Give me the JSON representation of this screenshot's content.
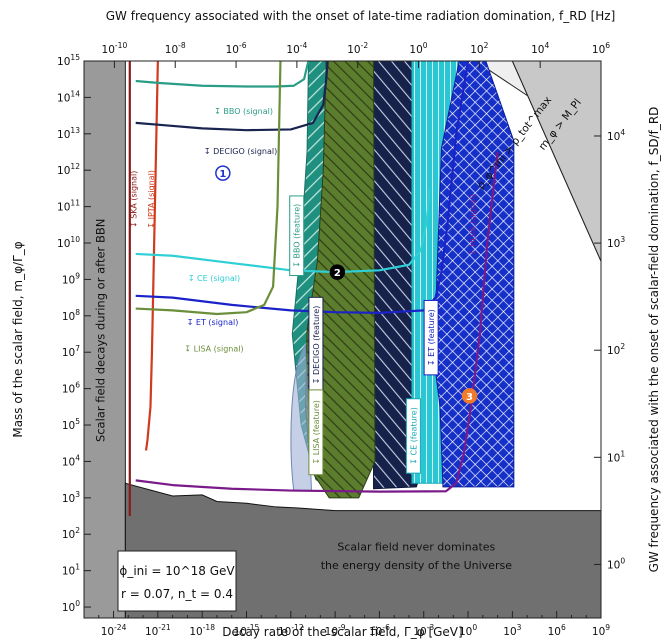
{
  "chart_data": {
    "type": "line",
    "title": "",
    "xlabel": "Decay rate of the scalar field, Γ_φ [GeV]",
    "ylabel": "Mass of the scalar field, m_φ/Γ_φ",
    "x2label": "GW frequency associated with the onset of late-time radiation domination, f_RD [Hz]",
    "y2label": "GW frequency associated with the onset of scalar-field domination, f_SD/f_RD",
    "x_scale": "log",
    "y_scale": "log",
    "xlim": [
      1e-26,
      1000000000.0
    ],
    "ylim": [
      0.5,
      1000000000000000.0
    ],
    "x_ticks": [
      "10^-24",
      "10^-21",
      "10^-18",
      "10^-15",
      "10^-12",
      "10^-9",
      "10^-6",
      "10^-3",
      "10^0",
      "10^3",
      "10^6",
      "10^9"
    ],
    "y_ticks": [
      "10^0",
      "10^1",
      "10^2",
      "10^3",
      "10^4",
      "10^5",
      "10^6",
      "10^7",
      "10^8",
      "10^9",
      "10^10",
      "10^11",
      "10^12",
      "10^13",
      "10^14",
      "10^15"
    ],
    "x2_ticks": [
      "10^-10",
      "10^-8",
      "10^-6",
      "10^-4",
      "10^-2",
      "10^0",
      "10^2",
      "10^4",
      "10^6"
    ],
    "y2_ticks": [
      "10^0",
      "10^1",
      "10^2",
      "10^3",
      "10^4"
    ],
    "series": [
      {
        "name": "SKA (signal)",
        "color": "#8b1a1a",
        "x": [
          -22.9,
          -22.9
        ],
        "y": [
          2.5,
          15
        ]
      },
      {
        "name": "IPTA (signal)",
        "color": "#d13a1c",
        "x": [
          -21.8,
          -21.7,
          -21.5,
          -21.4,
          -21.3,
          -21.2,
          -21.0
        ],
        "y": [
          4.3,
          4.6,
          5.5,
          7,
          9,
          11,
          15
        ]
      },
      {
        "name": "BBO (signal)",
        "color": "#2a9d86",
        "x": [
          -22.5,
          -21,
          -18,
          -15,
          -13,
          -11.8,
          -11.1,
          -10.9,
          -10.8
        ],
        "y": [
          14.45,
          14.4,
          14.32,
          14.3,
          14.3,
          14.32,
          14.5,
          14.85,
          15
        ]
      },
      {
        "name": "DECIGO (signal)",
        "color": "#1a2450",
        "x": [
          -22.5,
          -21,
          -18,
          -15,
          -12,
          -10.5,
          -9.8,
          -9.6,
          -9.5
        ],
        "y": [
          13.3,
          13.25,
          13.15,
          13.1,
          13.12,
          13.3,
          13.8,
          14.5,
          15
        ]
      },
      {
        "name": "CE (signal)",
        "color": "#2fd0d5",
        "x": [
          -22.5,
          -20,
          -16,
          -12,
          -9,
          -6,
          -4,
          -3.2,
          -2.8,
          -2.6
        ],
        "y": [
          9.7,
          9.65,
          9.45,
          9.25,
          9.2,
          9.25,
          9.4,
          9.8,
          10.6,
          11.5
        ]
      },
      {
        "name": "ET (signal)",
        "color": "#1a22c8",
        "x": [
          -22.5,
          -20,
          -16,
          -12,
          -9,
          -6,
          -3,
          -2.2,
          -1.8,
          -1.4,
          -0.8,
          0
        ],
        "y": [
          8.55,
          8.5,
          8.3,
          8.15,
          8.1,
          8.08,
          8.15,
          8.5,
          9.2,
          10.5,
          13,
          15
        ]
      },
      {
        "name": "LISA (signal)",
        "color": "#6b8e3a",
        "x": [
          -22.5,
          -20,
          -17,
          -15,
          -13.8,
          -13.2,
          -12.9,
          -12.7
        ],
        "y": [
          8.2,
          8.15,
          8.05,
          8.1,
          8.3,
          8.8,
          11,
          15
        ]
      },
      {
        "name": "HLVK (signal)",
        "color": "#7a1a8a",
        "x": [
          -22.5,
          -20,
          -16,
          -12,
          -6,
          -1.5,
          -0.8,
          -0.3,
          0.2,
          0.8,
          1.3,
          2
        ],
        "y": [
          3.48,
          3.35,
          3.25,
          3.2,
          3.17,
          3.18,
          3.4,
          4.2,
          5.5,
          7.5,
          10,
          12.5
        ]
      }
    ],
    "feature_regions": [
      "BBO (feature)",
      "DECIGO (feature)",
      "CE (feature)",
      "ET (feature)",
      "LISA (feature)"
    ],
    "region_labels": {
      "bbn": "Scalar field decays during or after BBN",
      "never_line1": "Scalar field never dominates",
      "never_line2": "the energy density of the Universe",
      "rho_ini": "ρ_φ^ini > ρ_tot^max",
      "m_planck": "m_φ > M_Pl"
    },
    "markers": [
      "1",
      "2",
      "3"
    ],
    "parameters": {
      "phi_ini": "ϕ_ini = 10^18 GeV",
      "r_nt": "r = 0.07, n_t = 0.4"
    },
    "grid": false,
    "legend": "none"
  }
}
